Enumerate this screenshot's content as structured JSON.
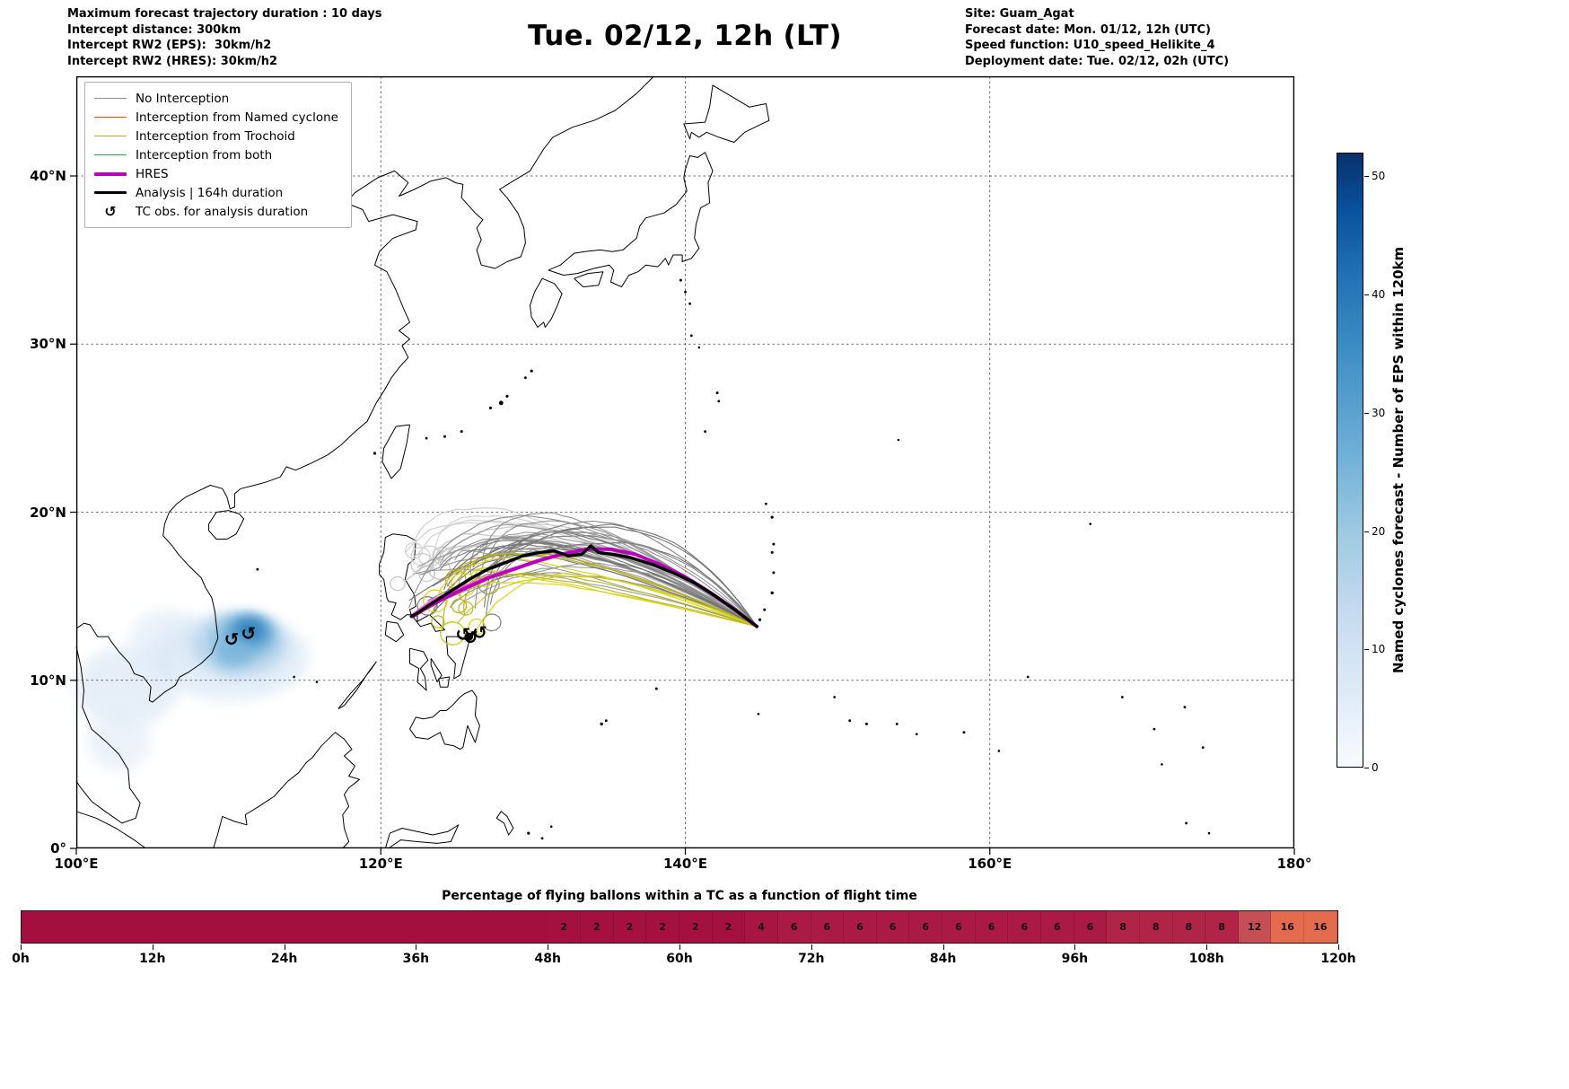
{
  "header": {
    "info_left": [
      "Maximum forecast trajectory duration : 10 days",
      "Intercept distance: 300km",
      "Intercept RW2 (EPS):  30km/h2",
      "Intercept RW2 (HRES): 30km/h2"
    ],
    "title": "Tue. 02/12, 12h (LT)",
    "info_right": [
      "Site: Guam_Agat",
      "Forecast date: Mon. 01/12, 12h (UTC)",
      "Speed function: U10_speed_Helikite_4",
      "Deployment date: Tue. 02/12, 02h (UTC)"
    ]
  },
  "map": {
    "x_ticks": [
      "100°E",
      "120°E",
      "140°E",
      "160°E",
      "180°"
    ],
    "x_tick_lons": [
      100,
      120,
      140,
      160,
      180
    ],
    "y_ticks": [
      "0°",
      "10°N",
      "20°N",
      "30°N",
      "40°N"
    ],
    "y_tick_lats": [
      0,
      10,
      20,
      30,
      40
    ],
    "lon_range": [
      100,
      180
    ],
    "lat_range": [
      0,
      45.9
    ],
    "legend": [
      {
        "label": "No Interception",
        "color": "#909090",
        "lw": 1.5
      },
      {
        "label": "Interception from Named cyclone",
        "color": "#ff4500",
        "lw": 1.5
      },
      {
        "label": "Interception from Trochoid",
        "color": "#b9b514",
        "lw": 1.5
      },
      {
        "label": "Interception from both",
        "color": "#2e9e3e",
        "lw": 1.5
      },
      {
        "label": "HRES",
        "color": "#bb00bb",
        "lw": 4
      },
      {
        "label": "Analysis | 164h duration",
        "color": "#000000",
        "lw": 3.5
      },
      {
        "label": "TC obs. for analysis duration",
        "symbol": "↺"
      }
    ]
  },
  "colorbar": {
    "label": "Named cyclones forecast - Number of EPS within 120km",
    "ticks": [
      0,
      10,
      20,
      30,
      40,
      50
    ],
    "vmax": 52,
    "color_low": "#f7fbff",
    "color_high": "#08306b"
  },
  "strip": {
    "x_ticks": [
      "0h",
      "12h",
      "24h",
      "36h",
      "48h",
      "60h",
      "72h",
      "84h",
      "96h",
      "108h",
      "120h"
    ],
    "x_tick_hours": [
      0,
      12,
      24,
      36,
      48,
      60,
      72,
      84,
      96,
      108,
      120
    ],
    "base_color": "#a30f3f",
    "value_colors": {
      "2": "#a41140",
      "4": "#a71542",
      "6": "#aa1a44",
      "8": "#b02448",
      "12": "#c54e55",
      "16": "#e56b4e"
    }
  },
  "chart_data": [
    {
      "type": "map-trajectory-ensemble",
      "title": "Tue. 02/12, 12h (LT)",
      "lon_range": [
        100,
        180
      ],
      "lat_range": [
        0,
        45.9
      ],
      "site": {
        "name": "Guam_Agat",
        "lon": 144.7,
        "lat": 13.2
      },
      "analysis_track": [
        [
          144.7,
          13.2
        ],
        [
          143.4,
          14.1
        ],
        [
          142.0,
          15.0
        ],
        [
          140.6,
          15.8
        ],
        [
          139.2,
          16.4
        ],
        [
          137.8,
          16.9
        ],
        [
          136.4,
          17.3
        ],
        [
          135.2,
          17.5
        ],
        [
          134.3,
          17.6
        ],
        [
          133.8,
          18.0
        ],
        [
          133.2,
          17.5
        ],
        [
          132.3,
          17.4
        ],
        [
          131.4,
          17.7
        ],
        [
          130.4,
          17.6
        ],
        [
          129.3,
          17.4
        ],
        [
          128.2,
          17.0
        ],
        [
          127.0,
          16.6
        ],
        [
          125.8,
          16.0
        ],
        [
          124.6,
          15.3
        ],
        [
          123.4,
          14.6
        ],
        [
          122.4,
          14.0
        ],
        [
          122.0,
          13.8
        ]
      ],
      "hres_track": [
        [
          144.7,
          13.2
        ],
        [
          143.1,
          14.3
        ],
        [
          141.5,
          15.3
        ],
        [
          139.9,
          16.2
        ],
        [
          138.3,
          16.9
        ],
        [
          136.7,
          17.5
        ],
        [
          135.1,
          17.8
        ],
        [
          133.5,
          17.8
        ],
        [
          131.9,
          17.5
        ],
        [
          130.3,
          17.1
        ],
        [
          128.7,
          16.6
        ],
        [
          127.1,
          16.1
        ],
        [
          125.6,
          15.5
        ],
        [
          124.2,
          14.9
        ],
        [
          123.0,
          14.3
        ],
        [
          122.1,
          13.8
        ]
      ],
      "hres_secondary_track": [
        [
          122.1,
          13.9
        ],
        [
          123.3,
          14.7
        ],
        [
          124.7,
          15.3
        ],
        [
          126.1,
          15.8
        ],
        [
          127.5,
          16.3
        ],
        [
          128.9,
          16.7
        ]
      ],
      "tc_observations": [
        [
          110.2,
          12.45
        ],
        [
          111.3,
          12.8
        ],
        [
          125.4,
          12.75
        ],
        [
          125.9,
          12.55
        ],
        [
          126.5,
          12.85
        ]
      ],
      "named_cyclone_density_blobs": [
        {
          "lon": 110.1,
          "lat": 11.4,
          "rx": 5.2,
          "ry": 2.6,
          "color": "#dce9f6",
          "opacity": 0.75
        },
        {
          "lon": 103.3,
          "lat": 9.6,
          "rx": 3.4,
          "ry": 2.4,
          "color": "#dce9f6",
          "opacity": 0.7
        },
        {
          "lon": 102.8,
          "lat": 6.3,
          "rx": 2.1,
          "ry": 1.7,
          "color": "#e2edf8",
          "opacity": 0.65
        },
        {
          "lon": 106.0,
          "lat": 12.4,
          "rx": 2.5,
          "ry": 1.8,
          "color": "#dce9f6",
          "opacity": 0.6
        },
        {
          "lon": 110.7,
          "lat": 12.1,
          "rx": 3.2,
          "ry": 1.9,
          "color": "#b9d6ec",
          "opacity": 0.85
        },
        {
          "lon": 111.0,
          "lat": 12.5,
          "rx": 2.2,
          "ry": 1.35,
          "color": "#8cc0e0",
          "opacity": 0.9
        },
        {
          "lon": 111.3,
          "lat": 12.8,
          "rx": 1.5,
          "ry": 0.95,
          "color": "#5da4d0",
          "opacity": 0.95
        },
        {
          "lon": 111.4,
          "lat": 13.0,
          "rx": 0.95,
          "ry": 0.6,
          "color": "#2f7fbc",
          "opacity": 0.95
        },
        {
          "lon": 110.3,
          "lat": 11.6,
          "rx": 1.3,
          "ry": 0.85,
          "color": "#79b5d9",
          "opacity": 0.8
        }
      ],
      "ensemble_summary": {
        "seed": 11,
        "n_no_interception": 34,
        "n_light": 8,
        "n_trochoid": 9,
        "gray_colors": [
          "#6f6f6f",
          "#7d7d7d",
          "#8a8a8a",
          "#969696"
        ],
        "light_colors": [
          "#c6c6c6",
          "#d2d2d2"
        ],
        "yellow_colors": [
          "#d8d414",
          "#b9b516",
          "#cac61a"
        ]
      }
    },
    {
      "type": "heatmap-strip",
      "title": "Percentage of flying ballons within a TC as a function of flight time",
      "x_unit": "hours",
      "x_range": [
        0,
        120
      ],
      "segment_start_hour": 48,
      "segment_hours": 3,
      "values": [
        2,
        2,
        2,
        2,
        2,
        2,
        4,
        6,
        6,
        6,
        6,
        6,
        6,
        6,
        6,
        6,
        6,
        8,
        8,
        8,
        8,
        12,
        16,
        16
      ]
    }
  ]
}
